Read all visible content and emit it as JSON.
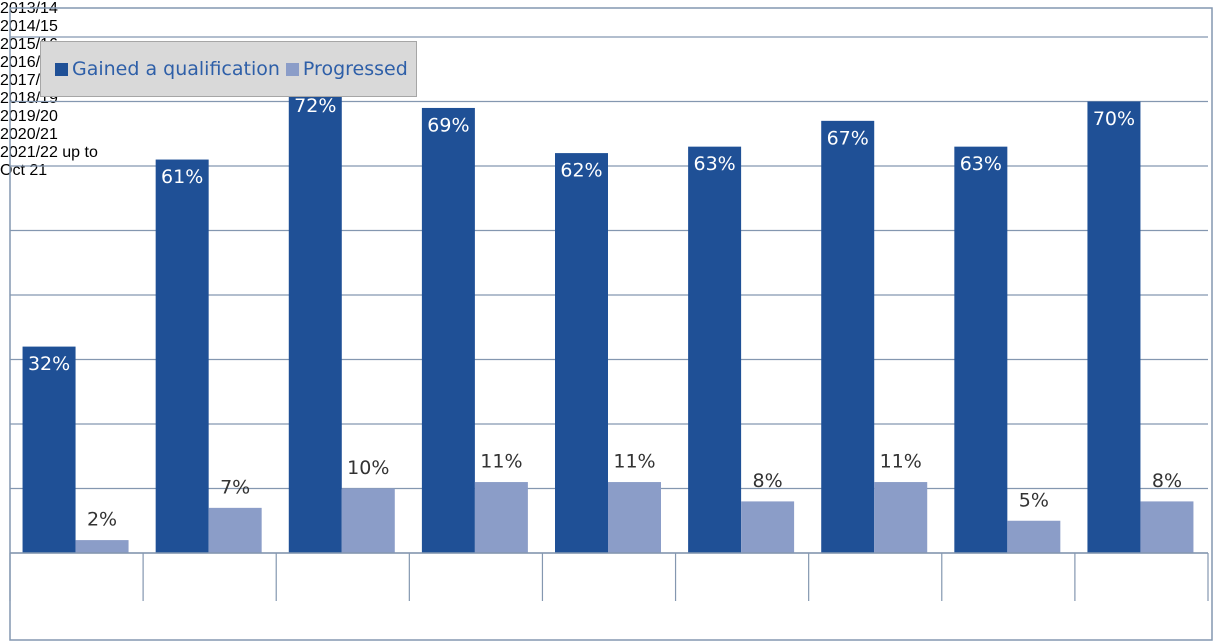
{
  "chart_data": {
    "type": "bar",
    "categories": [
      "2013/14",
      "2014/15",
      "2015/16",
      "2016/17",
      "2017/18",
      "2018/19",
      "2019/20",
      "2020/21",
      "2021/22 up to Oct 21"
    ],
    "series": [
      {
        "name": "Gained a qualification",
        "color": "#1f5096",
        "values": [
          32,
          61,
          72,
          69,
          62,
          63,
          67,
          63,
          70
        ],
        "value_labels": [
          "32%",
          "61%",
          "72%",
          "69%",
          "62%",
          "63%",
          "67%",
          "63%",
          "70%"
        ]
      },
      {
        "name": "Progressed",
        "color": "#8b9dc8",
        "values": [
          2,
          7,
          10,
          11,
          11,
          8,
          11,
          5,
          8
        ],
        "value_labels": [
          "2%",
          "7%",
          "10%",
          "11%",
          "11%",
          "8%",
          "11%",
          "5%",
          "8%"
        ]
      }
    ],
    "ylim": [
      0,
      80
    ],
    "yticks": [
      0,
      10,
      20,
      30,
      40,
      50,
      60,
      70,
      80
    ],
    "grid": true,
    "legend": "top-left"
  }
}
